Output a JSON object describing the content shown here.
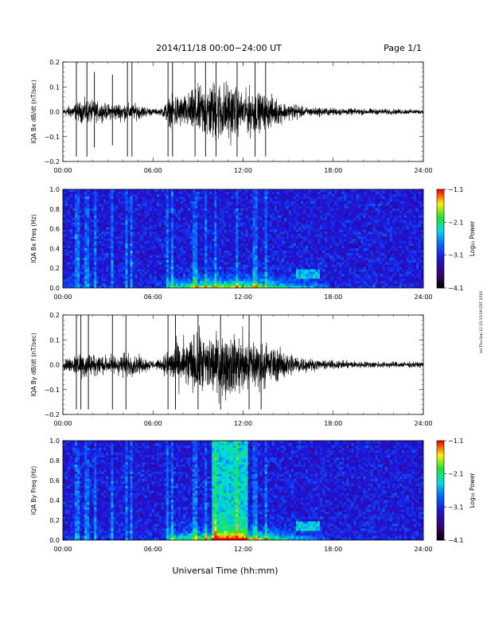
{
  "header": {
    "title": "2014/11/18   00:00−24:00 UT",
    "page": "Page 1/1"
  },
  "footer": {
    "xlabel": "Universal Time (hh:mm)"
  },
  "side_note": "ssl Thu Sep 12 15:13:09 EDT 2019",
  "colorbar": {
    "label": "Log₁₀ Power",
    "ticks": [
      "−1.1",
      "−2.1",
      "−3.1",
      "−4.1"
    ]
  },
  "chart_data": [
    {
      "type": "line",
      "title": "",
      "ylabel": "IQA Bx dB/dt (nT/sec)",
      "xlabel": "",
      "x_ticks": [
        "00:00",
        "06:00",
        "12:00",
        "18:00",
        "24:00"
      ],
      "xlim": [
        0,
        24
      ],
      "ylim": [
        -0.2,
        0.2
      ],
      "y_ticks": [
        "−0.2",
        "−0.1",
        "0.0",
        "0.1",
        "0.2"
      ],
      "y_tick_values": [
        -0.2,
        -0.1,
        0.0,
        0.1,
        0.2
      ],
      "envelope": {
        "hours": [
          0,
          1,
          1.5,
          2,
          3,
          4,
          5,
          6,
          6.5,
          7,
          7.5,
          8,
          9,
          10,
          11,
          12,
          12.5,
          13,
          14,
          15,
          15.5,
          16,
          17,
          18,
          19,
          20,
          22,
          24
        ],
        "amplitude": [
          0.025,
          0.06,
          0.08,
          0.07,
          0.05,
          0.06,
          0.05,
          0.02,
          0.02,
          0.08,
          0.12,
          0.1,
          0.16,
          0.2,
          0.2,
          0.12,
          0.16,
          0.12,
          0.1,
          0.05,
          0.06,
          0.03,
          0.03,
          0.025,
          0.022,
          0.02,
          0.018,
          0.015
        ]
      },
      "spikes": [
        {
          "hour": 0.9,
          "amp": 0.2
        },
        {
          "hour": 1.6,
          "amp": 0.2
        },
        {
          "hour": 2.1,
          "amp": 0.16
        },
        {
          "hour": 3.3,
          "amp": 0.15
        },
        {
          "hour": 4.3,
          "amp": 0.2
        },
        {
          "hour": 4.6,
          "amp": 0.2
        },
        {
          "hour": 7.0,
          "amp": 0.2
        },
        {
          "hour": 7.3,
          "amp": 0.2
        },
        {
          "hour": 8.8,
          "amp": 0.2
        },
        {
          "hour": 9.5,
          "amp": 0.2
        },
        {
          "hour": 10.2,
          "amp": 0.2
        },
        {
          "hour": 11.6,
          "amp": 0.2
        },
        {
          "hour": 12.8,
          "amp": 0.2
        },
        {
          "hour": 13.5,
          "amp": 0.2
        }
      ]
    },
    {
      "type": "heatmap",
      "title": "",
      "ylabel": "IQA Bx Freq (Hz)",
      "xlabel": "",
      "x_ticks": [
        "00:00",
        "06:00",
        "12:00",
        "18:00",
        "24:00"
      ],
      "xlim": [
        0,
        24
      ],
      "ylim": [
        0,
        1.0
      ],
      "y_ticks": [
        "0.0",
        "0.2",
        "0.4",
        "0.6",
        "0.8",
        "1.0"
      ],
      "y_tick_values": [
        0.0,
        0.2,
        0.4,
        0.6,
        0.8,
        1.0
      ],
      "zlim": [
        -4.1,
        -1.1
      ],
      "zlabel": "Log₁₀ Power"
    },
    {
      "type": "line",
      "title": "",
      "ylabel": "IQA By dB/dt (nT/sec)",
      "xlabel": "",
      "x_ticks": [
        "00:00",
        "06:00",
        "12:00",
        "18:00",
        "24:00"
      ],
      "xlim": [
        0,
        24
      ],
      "ylim": [
        -0.2,
        0.2
      ],
      "y_ticks": [
        "−0.2",
        "−0.1",
        "0.0",
        "0.1",
        "0.2"
      ],
      "y_tick_values": [
        -0.2,
        -0.1,
        0.0,
        0.1,
        0.2
      ],
      "envelope": {
        "hours": [
          0,
          1,
          1.5,
          2,
          3,
          4,
          5,
          6,
          6.5,
          7,
          7.5,
          8,
          9,
          10,
          11,
          12,
          12.5,
          13,
          14,
          15,
          15.5,
          16,
          17,
          18,
          19,
          20,
          22,
          24
        ],
        "amplitude": [
          0.03,
          0.08,
          0.1,
          0.07,
          0.06,
          0.08,
          0.06,
          0.03,
          0.03,
          0.1,
          0.14,
          0.16,
          0.2,
          0.2,
          0.2,
          0.2,
          0.2,
          0.16,
          0.12,
          0.08,
          0.07,
          0.05,
          0.03,
          0.028,
          0.025,
          0.022,
          0.02,
          0.018
        ]
      },
      "spikes": [
        {
          "hour": 0.9,
          "amp": 0.2
        },
        {
          "hour": 1.2,
          "amp": 0.2
        },
        {
          "hour": 1.7,
          "amp": 0.2
        },
        {
          "hour": 3.3,
          "amp": 0.2
        },
        {
          "hour": 4.2,
          "amp": 0.2
        },
        {
          "hour": 7.0,
          "amp": 0.2
        },
        {
          "hour": 7.5,
          "amp": 0.2
        },
        {
          "hour": 9.0,
          "amp": 0.2
        },
        {
          "hour": 10.5,
          "amp": 0.2
        },
        {
          "hour": 12.4,
          "amp": 0.2
        },
        {
          "hour": 13.2,
          "amp": 0.2
        }
      ]
    },
    {
      "type": "heatmap",
      "title": "",
      "ylabel": "IQA By Freq (Hz)",
      "xlabel": "",
      "x_ticks": [
        "00:00",
        "06:00",
        "12:00",
        "18:00",
        "24:00"
      ],
      "xlim": [
        0,
        24
      ],
      "ylim": [
        0,
        1.0
      ],
      "y_ticks": [
        "0.0",
        "0.2",
        "0.4",
        "0.6",
        "0.8",
        "1.0"
      ],
      "y_tick_values": [
        0.0,
        0.2,
        0.4,
        0.6,
        0.8,
        1.0
      ],
      "zlim": [
        -4.1,
        -1.1
      ],
      "zlabel": "Log₁₀ Power"
    }
  ]
}
